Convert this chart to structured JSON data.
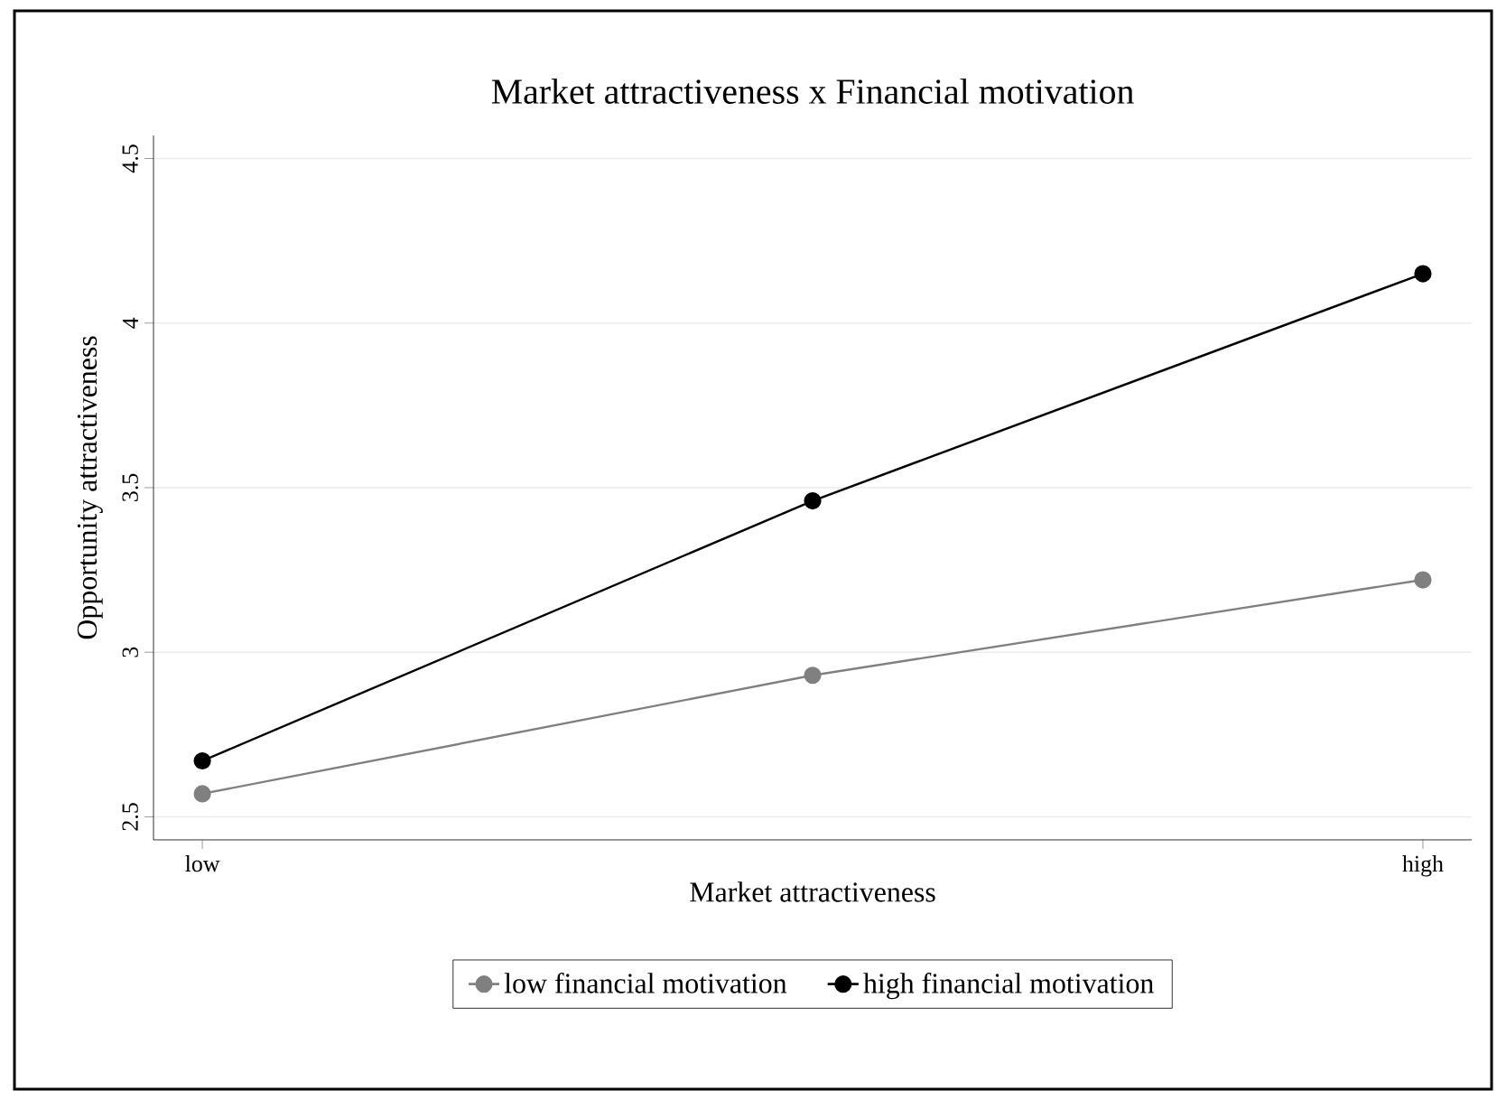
{
  "chart_data": {
    "type": "line",
    "title": "Market attractiveness x Financial motivation",
    "xlabel": "Market attractiveness",
    "ylabel": "Opportunity attractiveness",
    "categories": [
      "low",
      null,
      "high"
    ],
    "series": [
      {
        "name": "low financial motivation",
        "color": "#808080",
        "values": [
          2.57,
          2.93,
          3.22
        ]
      },
      {
        "name": "high financial motivation",
        "color": "#000000",
        "values": [
          2.67,
          3.46,
          4.15
        ]
      }
    ],
    "ylim": [
      2.43,
      4.57
    ],
    "yticks": [
      2.5,
      3,
      3.5,
      4,
      4.5
    ],
    "grid": "y",
    "legend": "bottom",
    "marker": "circle",
    "line_style": "solid"
  }
}
